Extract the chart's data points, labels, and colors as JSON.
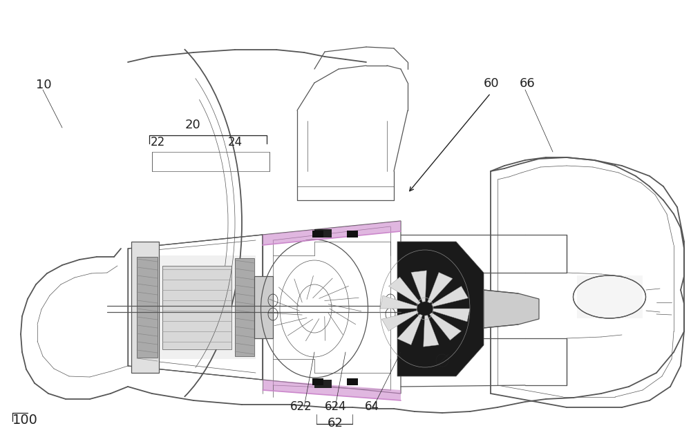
{
  "bg_color": "#ffffff",
  "line_color": "#555555",
  "dark_color": "#222222",
  "figsize": [
    10.0,
    6.46
  ],
  "dpi": 100,
  "lw_thin": 0.5,
  "lw_med": 0.9,
  "lw_thick": 1.3
}
